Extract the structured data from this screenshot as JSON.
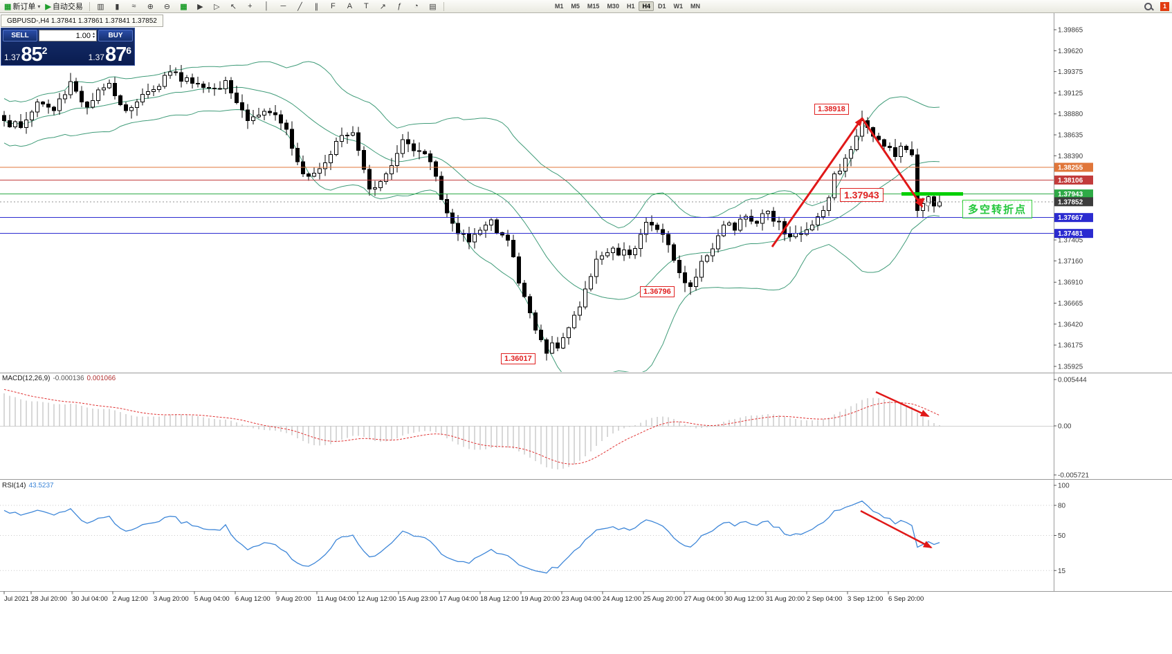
{
  "toolbar": {
    "new_order": {
      "label": "新订单"
    },
    "autotrading": {
      "label": "自动交易"
    },
    "icon_buttons": [
      {
        "name": "chart-bars",
        "glyph": "▥"
      },
      {
        "name": "chart-candles",
        "glyph": "▮"
      },
      {
        "name": "chart-line",
        "glyph": "≈"
      },
      {
        "name": "zoom-in",
        "glyph": "⊕"
      },
      {
        "name": "zoom-out",
        "glyph": "⊖"
      },
      {
        "name": "tile-windows",
        "glyph": "▦",
        "green": true
      },
      {
        "name": "auto-scroll",
        "glyph": "▶"
      },
      {
        "name": "chart-shift",
        "glyph": "▷"
      },
      {
        "name": "cursor",
        "glyph": "↖"
      },
      {
        "name": "crosshair",
        "glyph": "+"
      },
      {
        "name": "vertical-line",
        "glyph": "│"
      },
      {
        "name": "horizontal-line",
        "glyph": "─"
      },
      {
        "name": "trendline",
        "glyph": "╱"
      },
      {
        "name": "equidistant-channel",
        "glyph": "∥"
      },
      {
        "name": "fibonacci-retracement",
        "glyph": "F"
      },
      {
        "name": "text",
        "glyph": "A"
      },
      {
        "name": "text-label",
        "glyph": "T"
      },
      {
        "name": "arrows",
        "glyph": "↗"
      },
      {
        "name": "indicators",
        "glyph": "ƒ"
      },
      {
        "name": "periods",
        "glyph": "◔"
      },
      {
        "name": "templates",
        "glyph": "▤"
      }
    ],
    "timeframes": [
      "M1",
      "M5",
      "M15",
      "M30",
      "H1",
      "H4",
      "D1",
      "W1",
      "MN"
    ],
    "active_timeframe": "H4",
    "notification": "1"
  },
  "chart_tab": {
    "title": "GBPUSD-,H4  1.37841 1.37861 1.37841 1.37852"
  },
  "trade_panel": {
    "sell_label": "SELL",
    "buy_label": "BUY",
    "volume": "1.00",
    "sell_price_prefix": "1.37",
    "sell_price_big": "85",
    "sell_price_sup": "2",
    "buy_price_prefix": "1.37",
    "buy_price_big": "87",
    "buy_price_sup": "6"
  },
  "macd_header": {
    "name": "MACD(12,26,9)",
    "main_value": "-0.000136",
    "signal_value": "0.001066"
  },
  "rsi_header": {
    "name": "RSI(14)",
    "value": "43.5237"
  },
  "annotations": {
    "peak_price": "1.38918",
    "pivot_price": "1.37943",
    "swing_low_price": "1.36796",
    "major_low_price": "1.36017",
    "pivot_note": "多空转折点"
  },
  "price_axis": {
    "ticks": [
      "1.39865",
      "1.39620",
      "1.39375",
      "1.39125",
      "1.38880",
      "1.38635",
      "1.38390",
      "1.37405",
      "1.37160",
      "1.36910",
      "1.36665",
      "1.36420",
      "1.36175",
      "1.35925"
    ],
    "badges": [
      {
        "label": "1.38255",
        "price": 1.38255,
        "color": "#e0763a"
      },
      {
        "label": "1.38106",
        "price": 1.38106,
        "color": "#c23b3b"
      },
      {
        "label": "1.37943",
        "price": 1.37943,
        "color": "#2eaa46"
      },
      {
        "label": "1.37852",
        "price": 1.37852,
        "color": "#3c3c3c"
      },
      {
        "label": "1.37667",
        "price": 1.37667,
        "color": "#2b2bd0"
      },
      {
        "label": "1.37481",
        "price": 1.37481,
        "color": "#2b2bd0"
      }
    ]
  },
  "indicator_axes": {
    "macd_labels": [
      "0.005444",
      "0.00",
      "-0.005721"
    ],
    "rsi_labels": [
      "100",
      "80",
      "50",
      "15"
    ]
  },
  "time_axis": {
    "labels": [
      "Jul 2021",
      "28 Jul 20:00",
      "30 Jul 04:00",
      "2 Aug 12:00",
      "3 Aug 20:00",
      "5 Aug 04:00",
      "6 Aug 12:00",
      "9 Aug 20:00",
      "11 Aug 04:00",
      "12 Aug 12:00",
      "15 Aug 23:00",
      "17 Aug 04:00",
      "18 Aug 12:00",
      "19 Aug 20:00",
      "23 Aug 04:00",
      "24 Aug 12:00",
      "25 Aug 20:00",
      "27 Aug 04:00",
      "30 Aug 12:00",
      "31 Aug 20:00",
      "2 Sep 04:00",
      "3 Sep 12:00",
      "6 Sep 20:00"
    ]
  },
  "chart_data": {
    "type": "candlestick",
    "symbol": "GBPUSD-",
    "timeframe": "H4",
    "ohlc_display": {
      "open": "1.37841",
      "high": "1.37861",
      "low": "1.37841",
      "close": "1.37852"
    },
    "bid": 1.37852,
    "ask": 1.37876,
    "visible_range": {
      "high": 1.39865,
      "low": 1.35925
    },
    "bar_count": 170,
    "seed": 1337,
    "jitter": 0.0007,
    "wick": 0.0009,
    "close_waypoints": [
      [
        0,
        1.388
      ],
      [
        3,
        1.3872
      ],
      [
        6,
        1.3902
      ],
      [
        9,
        1.3892
      ],
      [
        12,
        1.3926
      ],
      [
        15,
        1.3896
      ],
      [
        19,
        1.3924
      ],
      [
        22,
        1.3892
      ],
      [
        26,
        1.3914
      ],
      [
        30,
        1.3937
      ],
      [
        34,
        1.3924
      ],
      [
        37,
        1.3918
      ],
      [
        40,
        1.3927
      ],
      [
        44,
        1.388
      ],
      [
        47,
        1.3891
      ],
      [
        51,
        1.387
      ],
      [
        54,
        1.3818
      ],
      [
        57,
        1.3824
      ],
      [
        60,
        1.3856
      ],
      [
        63,
        1.3866
      ],
      [
        66,
        1.38
      ],
      [
        69,
        1.3818
      ],
      [
        72,
        1.3858
      ],
      [
        74,
        1.3845
      ],
      [
        77,
        1.3832
      ],
      [
        79,
        1.3788
      ],
      [
        82,
        1.3748
      ],
      [
        84,
        1.3738
      ],
      [
        86,
        1.3752
      ],
      [
        88,
        1.3764
      ],
      [
        91,
        1.374
      ],
      [
        93,
        1.369
      ],
      [
        95,
        1.3655
      ],
      [
        98,
        1.3608
      ],
      [
        101,
        1.3626
      ],
      [
        104,
        1.3662
      ],
      [
        107,
        1.3718
      ],
      [
        110,
        1.3731
      ],
      [
        113,
        1.3723
      ],
      [
        116,
        1.3761
      ],
      [
        119,
        1.3747
      ],
      [
        122,
        1.3702
      ],
      [
        124,
        1.3686
      ],
      [
        127,
        1.3722
      ],
      [
        130,
        1.3758
      ],
      [
        132,
        1.3752
      ],
      [
        134,
        1.3768
      ],
      [
        136,
        1.376
      ],
      [
        138,
        1.3774
      ],
      [
        140,
        1.3762
      ],
      [
        142,
        1.3744
      ],
      [
        144,
        1.3747
      ],
      [
        146,
        1.3758
      ],
      [
        148,
        1.3775
      ],
      [
        150,
        1.3818
      ],
      [
        152,
        1.3836
      ],
      [
        154,
        1.3862
      ],
      [
        155,
        1.388
      ],
      [
        156,
        1.3872
      ],
      [
        157,
        1.3862
      ],
      [
        159,
        1.385
      ],
      [
        161,
        1.3838
      ],
      [
        162,
        1.385
      ],
      [
        163,
        1.3846
      ],
      [
        164,
        1.384
      ],
      [
        165,
        1.3775
      ],
      [
        166,
        1.3783
      ],
      [
        167,
        1.3791
      ],
      [
        168,
        1.378
      ],
      [
        169,
        1.37852
      ]
    ],
    "spikes": [
      {
        "bar": 155,
        "type": "high",
        "price": 1.38918
      },
      {
        "bar": 98,
        "type": "low",
        "price": 1.36017
      },
      {
        "bar": 123,
        "type": "low",
        "price": 1.36796
      },
      {
        "bar": 30,
        "type": "high",
        "price": 1.3945
      }
    ],
    "key_levels": [
      {
        "price": 1.38255,
        "color": "#e0763a"
      },
      {
        "price": 1.38106,
        "color": "#c23b3b"
      },
      {
        "price": 1.37943,
        "color": "#2eaa46"
      },
      {
        "price": 1.37667,
        "color": "#2b2bd0"
      },
      {
        "price": 1.37481,
        "color": "#2b2bd0"
      }
    ],
    "bid_line": {
      "price": 1.37852,
      "color": "#909090"
    },
    "pivot_highlight": {
      "price": 1.37943,
      "color": "#00cf00"
    },
    "bollinger": {
      "period": 20,
      "deviation": 2,
      "color": "#3f9b78"
    },
    "macd": {
      "fast": 12,
      "slow": 26,
      "signal": 9,
      "bar_color": "#b2b2b2",
      "line_color": "#e03030",
      "axis_max": 0.005444,
      "axis_min": -0.005721
    },
    "rsi": {
      "period": 14,
      "color": "#3d86d8",
      "levels": [
        80,
        50,
        15
      ]
    },
    "trend_arrow_color": "#e01818"
  }
}
